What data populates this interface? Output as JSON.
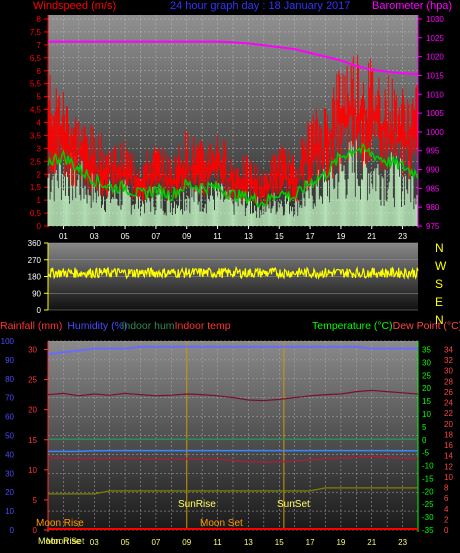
{
  "colors": {
    "wind": "#ff0000",
    "gust": "#ff0000",
    "avg": "#00cc00",
    "calm": "#ccffcc",
    "baro": "#ff00ff",
    "dir": "#ffff00",
    "hum": "#6a6aff",
    "inhum": "#2e8b57",
    "intemp": "#a02040",
    "temp": "#00ff00",
    "dew": "#ff4444",
    "rain": "#ff3333",
    "hum_label": "#4a4aff",
    "title": "#3333ff",
    "moon_phase": "#808000",
    "sun": "#ffff66",
    "sunrise_line": "#cc9900",
    "moon_text": "#ff9900"
  },
  "labels": {
    "windspeed": "Windspeed (m/s)",
    "title": "24 hour graph day : 18 January 2017",
    "barometer": "Barometer (hpa)",
    "rainfall": "Rainfall (mm)",
    "humidity": "Humidity (%)",
    "indoor_hum": "Indoor hum",
    "indoor_temp": "Indoor temp",
    "temperature": "Temperature (°C)",
    "dew_point": "Dew Point (°C)",
    "compass": [
      "N",
      "W",
      "S",
      "E",
      "N"
    ],
    "sunrise": "SunRise",
    "sunset": "SunSet",
    "moonrise": "Moon Rise",
    "moonset": "Moon Set",
    "moonrise_bottom": "Moon Rise",
    "moonset_bottom": "Moon Set"
  },
  "chart_data": [
    {
      "type": "line",
      "name": "wind",
      "hours_axis": [
        "01",
        "03",
        "05",
        "07",
        "09",
        "11",
        "13",
        "15",
        "17",
        "19",
        "21",
        "23"
      ],
      "wind_ticks": [
        "0",
        "0,5",
        "1",
        "1,5",
        "2",
        "2,5",
        "3",
        "3,5",
        "4",
        "4,5",
        "5",
        "5,5",
        "6",
        "6,5",
        "7",
        "7,5",
        "8"
      ],
      "baro_ticks": [
        "975",
        "980",
        "985",
        "990",
        "995",
        "1000",
        "1005",
        "1010",
        "1015",
        "1020",
        "1025",
        "1030"
      ],
      "wind_ylim": [
        0,
        8
      ],
      "baro_ylim": [
        975,
        1030
      ],
      "barometer": {
        "x": [
          0,
          1,
          2,
          3,
          4,
          5,
          6,
          7,
          8,
          9,
          10,
          11,
          12,
          13,
          14,
          15,
          16,
          17,
          18,
          19,
          20,
          21,
          22,
          23,
          24
        ],
        "y": [
          1024,
          1024,
          1024,
          1024,
          1024,
          1024,
          1024,
          1024,
          1024,
          1024,
          1024,
          1024,
          1023.8,
          1023.5,
          1023,
          1022.5,
          1022,
          1021,
          1020,
          1019,
          1017.5,
          1016.5,
          1016,
          1015.6,
          1015.3
        ]
      },
      "gust_envelope": {
        "x": [
          0,
          1,
          2,
          3,
          4,
          5,
          6,
          7,
          8,
          9,
          10,
          11,
          12,
          13,
          14,
          15,
          16,
          17,
          18,
          19,
          20,
          21,
          22,
          23,
          24
        ],
        "y": [
          5.5,
          5,
          4,
          3.5,
          3,
          3,
          2.5,
          3,
          2.5,
          3.5,
          3,
          3.5,
          2.5,
          2.5,
          2,
          3,
          2.5,
          4,
          4.5,
          6,
          6.5,
          6,
          5.5,
          5,
          5
        ]
      },
      "avg_speed": {
        "x": [
          0,
          1,
          2,
          3,
          4,
          5,
          6,
          7,
          8,
          9,
          10,
          11,
          12,
          13,
          14,
          15,
          16,
          17,
          18,
          19,
          20,
          21,
          22,
          23,
          24
        ],
        "y": [
          2.5,
          2.7,
          2.2,
          1.8,
          1.5,
          1.5,
          1.2,
          1.4,
          1.2,
          1.6,
          1.5,
          1.5,
          1.2,
          1.1,
          0.9,
          1.3,
          1.1,
          1.7,
          2,
          2.7,
          3,
          2.8,
          2.5,
          2.3,
          2
        ]
      }
    },
    {
      "type": "scatter",
      "name": "wind_direction",
      "ticks": [
        "0",
        "90",
        "180",
        "270",
        "360"
      ],
      "ylim": [
        0,
        360
      ],
      "mean_direction": 200
    },
    {
      "type": "line",
      "name": "temperature",
      "left_ticks_rain": [
        "0",
        "5",
        "10",
        "15",
        "20",
        "25",
        "30"
      ],
      "left_ticks_hum": [
        "0",
        "10",
        "20",
        "30",
        "40",
        "50",
        "60",
        "70",
        "80",
        "90",
        "100"
      ],
      "right_ticks_temp": [
        "35",
        "30",
        "25",
        "20",
        "15",
        "10",
        "5",
        "0",
        "-5",
        "-10",
        "-15",
        "-20",
        "-25",
        "-30",
        "-35"
      ],
      "right_ticks_dew": [
        "34",
        "32",
        "30",
        "28",
        "26",
        "24",
        "22",
        "20",
        "18",
        "16",
        "14",
        "12",
        "10",
        "8",
        "6",
        "4",
        "2",
        "0"
      ],
      "humidity": {
        "x": [
          0,
          1,
          2,
          3,
          4,
          5,
          6,
          7,
          8,
          9,
          10,
          11,
          12,
          13,
          14,
          15,
          16,
          17,
          18,
          19,
          20,
          21,
          22,
          23,
          24
        ],
        "y": [
          93,
          94,
          95,
          96,
          96,
          96,
          97,
          97,
          97,
          97,
          97,
          97,
          97,
          97,
          97,
          97,
          97,
          97,
          97,
          97,
          97,
          96,
          96,
          96,
          96
        ]
      },
      "indoor_humidity": [
        48,
        48,
        48,
        48,
        48,
        48,
        48,
        48,
        48,
        48,
        48,
        48,
        48,
        48,
        48,
        48,
        48,
        48,
        48,
        48,
        48,
        48,
        48,
        48,
        48
      ],
      "indoor_temp": [
        22.5,
        22.7,
        22.3,
        22.6,
        22.4,
        22.7,
        22.5,
        22.3,
        22.4,
        22.6,
        22.5,
        22.3,
        22,
        21.6,
        21.5,
        21.7,
        22,
        22.3,
        22.5,
        22.6,
        23,
        23.2,
        23,
        22.8,
        22.6
      ],
      "temperature": [
        -4.5,
        -4.5,
        -4.5,
        -4.3,
        -4.2,
        -4.2,
        -4.2,
        -4.2,
        -4.2,
        -4.2,
        -4.2,
        -4.2,
        -4.2,
        -4.2,
        -4.2,
        -4.2,
        -4.2,
        -4.2,
        -4.2,
        -4.2,
        -4.2,
        -4.2,
        -4.2,
        -4.3,
        -4.3
      ],
      "dew_point": [
        -7,
        -7.2,
        -7.4,
        -7.2,
        -7.4,
        -7.1,
        -7.3,
        -7.5,
        -7.4,
        -7.3,
        -7.5,
        -7.6,
        -8,
        -8.5,
        -8.7,
        -8.6,
        -8.2,
        -7.8,
        -7.4,
        -7.1,
        -6.8,
        -6.5,
        -6.8,
        -7.1,
        -7.3
      ],
      "moon_phase": [
        6,
        6,
        6,
        6,
        6.5,
        6.5,
        6.5,
        6.5,
        6.5,
        6.5,
        6.5,
        6.5,
        6.5,
        6.5,
        6.5,
        6.5,
        6.5,
        6.5,
        7,
        7,
        7,
        7,
        7,
        7,
        7
      ],
      "rain": 0,
      "moonrise_hour": 0.2,
      "moonset_hour": 12,
      "sunrise_hour": 9,
      "sunset_hour": 15.3
    }
  ]
}
